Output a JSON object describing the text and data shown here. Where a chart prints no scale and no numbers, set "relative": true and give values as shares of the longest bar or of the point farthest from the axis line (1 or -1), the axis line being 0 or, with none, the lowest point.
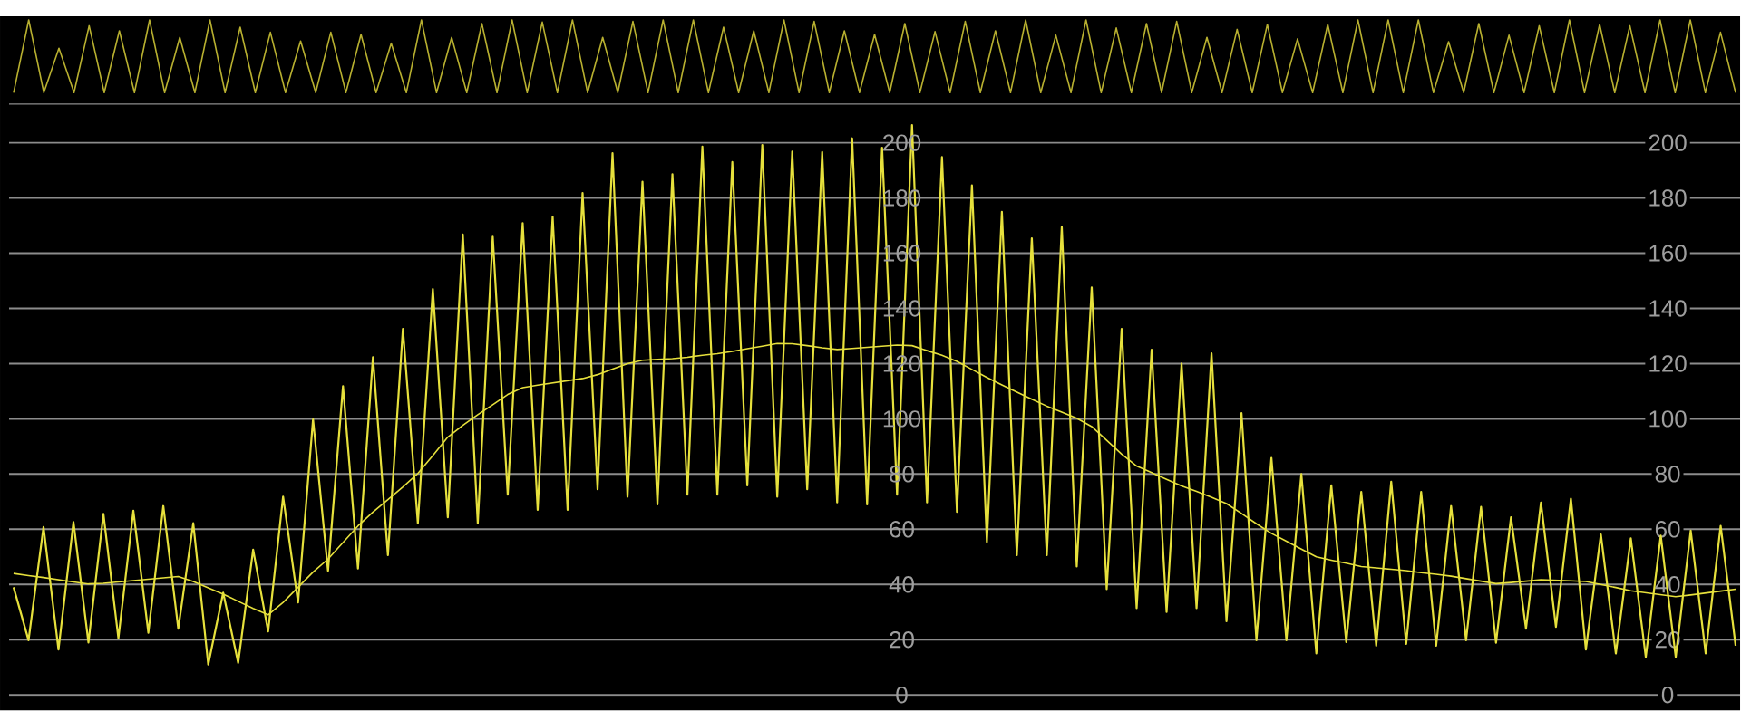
{
  "chart_data": [
    {
      "type": "line",
      "relative": true,
      "categories": [
        null,
        null,
        null,
        null,
        null,
        null,
        null,
        null,
        null,
        null,
        null,
        null,
        null,
        null,
        null,
        null,
        null,
        null,
        null,
        null,
        null,
        null,
        null,
        null,
        null,
        null,
        null,
        null,
        null,
        null,
        null,
        null,
        null,
        null,
        null,
        null,
        null,
        null,
        null,
        null,
        null,
        null,
        null,
        null,
        null,
        null,
        null,
        null,
        null,
        null,
        null,
        null,
        null,
        null,
        null,
        null,
        null,
        null,
        null,
        null,
        null,
        null,
        null,
        null,
        null,
        null,
        null,
        null,
        null,
        null,
        null,
        null,
        null,
        null,
        null,
        null,
        null,
        null,
        null,
        null,
        null,
        null,
        null,
        null,
        null,
        null,
        null,
        null,
        null,
        null,
        null,
        null,
        null,
        null,
        null,
        null,
        null,
        null,
        null,
        null,
        null,
        null,
        null,
        null,
        null,
        null,
        null,
        null,
        null,
        null,
        null,
        null,
        null,
        null,
        null
      ],
      "series": [
        {
          "color": "#b8b030",
          "values": [
            0,
            1,
            0,
            0.61,
            0,
            0.92,
            0,
            0.85,
            0,
            1,
            0,
            0.76,
            0,
            1,
            0,
            0.9,
            0,
            0.83,
            0,
            0.71,
            0,
            0.83,
            0,
            0.8,
            0,
            0.68,
            0,
            1,
            0,
            0.76,
            0,
            0.95,
            0,
            1,
            0,
            0.97,
            0,
            1,
            0,
            0.76,
            0,
            0.98,
            0,
            1,
            0,
            1,
            0,
            0.9,
            0,
            0.85,
            0,
            1,
            0,
            0.98,
            0,
            0.85,
            0,
            0.8,
            0,
            0.95,
            0,
            0.84,
            0,
            0.98,
            0,
            0.85,
            0,
            1,
            0,
            0.79,
            0,
            1,
            0,
            0.89,
            0,
            0.95,
            0,
            0.98,
            0,
            0.76,
            0,
            0.87,
            0,
            0.94,
            0,
            0.74,
            0,
            0.94,
            0,
            1,
            0,
            1,
            0,
            1,
            0,
            0.7,
            0,
            0.95,
            0,
            0.79,
            0,
            0.92,
            0,
            1,
            0,
            0.94,
            0,
            0.92,
            0,
            1,
            0,
            1,
            0,
            0.83,
            0
          ]
        }
      ]
    },
    {
      "type": "line",
      "categories": [
        null,
        null,
        null,
        null,
        null,
        null,
        null,
        null,
        null,
        null,
        null,
        null,
        null,
        null,
        null,
        null,
        null,
        null,
        null,
        null,
        null,
        null,
        null,
        null,
        null,
        null,
        null,
        null,
        null,
        null,
        null,
        null,
        null,
        null,
        null,
        null,
        null,
        null,
        null,
        null,
        null,
        null,
        null,
        null,
        null,
        null,
        null,
        null,
        null,
        null,
        null,
        null,
        null,
        null,
        null,
        null,
        null,
        null,
        null,
        null,
        null,
        null,
        null,
        null,
        null,
        null,
        null,
        null,
        null,
        null,
        null,
        null,
        null,
        null,
        null,
        null,
        null,
        null,
        null,
        null,
        null,
        null,
        null,
        null,
        null,
        null,
        null,
        null,
        null,
        null,
        null,
        null,
        null,
        null,
        null,
        null,
        null,
        null,
        null,
        null,
        null,
        null,
        null,
        null,
        null,
        null,
        null,
        null,
        null,
        null,
        null,
        null,
        null,
        null,
        null,
        null
      ],
      "ylim": [
        -5.7,
        214
      ],
      "yticks": [
        0,
        20,
        40,
        60,
        80,
        100,
        120,
        140,
        160,
        180,
        200
      ],
      "y2lim": [
        -5.7,
        214
      ],
      "y2ticks": [
        0,
        20,
        40,
        60,
        80,
        100,
        120,
        140,
        160,
        180,
        200
      ],
      "grid": "y",
      "series": [
        {
          "color": "#e6e03c",
          "values": [
            39,
            19.8,
            60.8,
            16.4,
            62.6,
            19,
            65.6,
            20.5,
            66.7,
            22.5,
            68.4,
            24,
            62.2,
            11,
            37,
            11.6,
            52.6,
            23,
            71.8,
            33.5,
            99.8,
            45,
            111.8,
            45.8,
            122.3,
            50.6,
            132.6,
            62.2,
            147,
            64.3,
            166.8,
            62.2,
            166,
            72.5,
            170.9,
            67,
            173.3,
            67,
            181.8,
            74.5,
            196.2,
            71.8,
            185.9,
            69,
            188.6,
            72.5,
            198.6,
            72.5,
            193,
            75.9,
            199.2,
            71.8,
            196.8,
            74.5,
            196.6,
            69.7,
            201.6,
            69,
            198.2,
            72.5,
            206.4,
            69.7,
            194.8,
            66.3,
            184.6,
            55.4,
            175,
            50.6,
            165.4,
            50.6,
            169.5,
            46.5,
            147.6,
            38.3,
            132.6,
            31.4,
            125,
            30,
            120,
            31.4,
            123.7,
            26.7,
            102.1,
            19.8,
            85.8,
            19.8,
            80,
            15,
            75.9,
            19.1,
            73.5,
            17.8,
            77.2,
            18.5,
            73.5,
            17.8,
            68.4,
            19.8,
            68.1,
            18.9,
            64.3,
            24,
            69.7,
            24.6,
            71.1,
            16.4,
            58.1,
            15,
            56.7,
            13.7,
            57.7,
            13.7,
            59.5,
            15,
            61.2,
            17.8
          ]
        },
        {
          "color": "#e6e03c",
          "values": [
            44,
            43.2,
            42.5,
            41.7,
            40.9,
            40.2,
            40.4,
            40.9,
            41.4,
            41.9,
            42.4,
            42.9,
            41.1,
            38.8,
            36.5,
            33.9,
            31.3,
            29,
            33.5,
            39,
            44.5,
            49.2,
            55.2,
            61.2,
            66.2,
            70.7,
            75.3,
            80.2,
            86.7,
            93.4,
            97.6,
            101.5,
            105.1,
            108.8,
            111.3,
            112.2,
            113,
            113.8,
            114.6,
            116,
            118,
            120,
            121.2,
            121.5,
            121.8,
            122.3,
            123,
            123.6,
            124.4,
            125.4,
            126.3,
            127.3,
            127.2,
            126.5,
            125.7,
            125.1,
            125.5,
            125.9,
            126.3,
            126.7,
            126.5,
            124.7,
            123,
            120.8,
            117.9,
            115,
            112.3,
            109.7,
            107.1,
            104.6,
            102.4,
            100.2,
            97.2,
            92.2,
            87.2,
            82.9,
            80.5,
            78.1,
            75.7,
            73.7,
            71.6,
            69.3,
            65.7,
            62,
            58.5,
            55.7,
            52.8,
            50,
            48.8,
            47.7,
            46.5,
            46,
            45.5,
            45,
            44.3,
            43.7,
            43,
            42.1,
            41.2,
            40.3,
            40.7,
            41.2,
            41.7,
            41.5,
            41.3,
            41.1,
            40,
            38.9,
            37.7,
            37,
            36.3,
            35.6,
            36.2,
            36.9,
            37.6,
            38.3
          ]
        }
      ]
    }
  ]
}
